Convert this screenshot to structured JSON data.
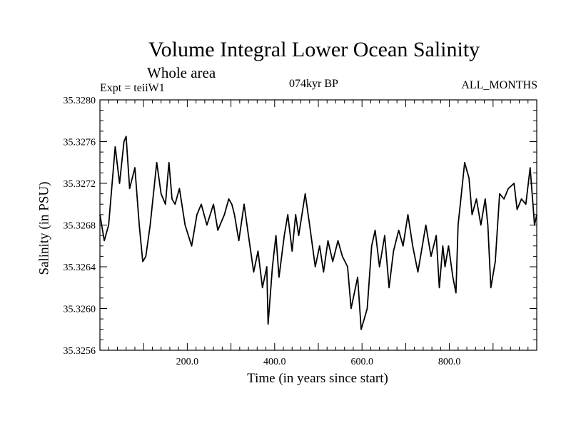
{
  "title": "Volume Integral Lower Ocean Salinity",
  "subtitle": "Whole area",
  "experiment": "Expt = teiiW1",
  "period": "074kyr BP",
  "months": "ALL_MONTHS",
  "chart_data": {
    "type": "line",
    "title": "Volume Integral Lower Ocean Salinity",
    "subtitle": "Whole area",
    "xlabel": "Time (in years since start)",
    "ylabel": "Salinity (in PSU)",
    "xlim": [
      0,
      1000
    ],
    "ylim": [
      35.3256,
      35.328
    ],
    "xticks": [
      200,
      400,
      600,
      800
    ],
    "xtick_labels": [
      "200.0",
      "400.0",
      "600.0",
      "800.0"
    ],
    "yticks": [
      35.3256,
      35.326,
      35.3264,
      35.3268,
      35.3272,
      35.3276,
      35.328
    ],
    "ytick_labels": [
      "35.3256",
      "35.3260",
      "35.3264",
      "35.3268",
      "35.3272",
      "35.3276",
      "35.3280"
    ],
    "grid": false,
    "line_color": "#000000",
    "series": [
      {
        "x": [
          0,
          10,
          20,
          35,
          45,
          55,
          60,
          68,
          80,
          90,
          98,
          105,
          115,
          130,
          140,
          150,
          158,
          165,
          172,
          182,
          195,
          210,
          222,
          232,
          245,
          260,
          270,
          285,
          295,
          302,
          308,
          318,
          330,
          340,
          352,
          362,
          372,
          382,
          385,
          395,
          403,
          410,
          422,
          430,
          440,
          448,
          455,
          470,
          480,
          493,
          503,
          512,
          522,
          533,
          545,
          555,
          567,
          575,
          590,
          598,
          605,
          612,
          622,
          630,
          640,
          652,
          662,
          672,
          684,
          694,
          705,
          716,
          728,
          738,
          746,
          758,
          770,
          777,
          785,
          790,
          798,
          808,
          815,
          820,
          825,
          835,
          845,
          852,
          862,
          872,
          882,
          888,
          895,
          905,
          915,
          925,
          935,
          948,
          955,
          965,
          975,
          985,
          995,
          1000
        ],
        "values": [
          35.3269,
          35.32665,
          35.3268,
          35.32755,
          35.3272,
          35.3276,
          35.32765,
          35.32715,
          35.32735,
          35.3268,
          35.32645,
          35.3265,
          35.3268,
          35.3274,
          35.3271,
          35.327,
          35.3274,
          35.32705,
          35.327,
          35.32715,
          35.3268,
          35.3266,
          35.3269,
          35.327,
          35.3268,
          35.327,
          35.32675,
          35.3269,
          35.32705,
          35.327,
          35.3269,
          35.32665,
          35.327,
          35.3267,
          35.32635,
          35.32655,
          35.3262,
          35.3264,
          35.32585,
          35.3264,
          35.3267,
          35.3263,
          35.3267,
          35.3269,
          35.32655,
          35.3269,
          35.3267,
          35.3271,
          35.3268,
          35.3264,
          35.3266,
          35.32635,
          35.32665,
          35.32645,
          35.32665,
          35.3265,
          35.3264,
          35.326,
          35.3263,
          35.3258,
          35.3259,
          35.326,
          35.3266,
          35.32675,
          35.3264,
          35.3267,
          35.3262,
          35.32655,
          35.32675,
          35.3266,
          35.3269,
          35.3266,
          35.32635,
          35.3266,
          35.3268,
          35.3265,
          35.3267,
          35.3262,
          35.3266,
          35.3264,
          35.3266,
          35.3263,
          35.32615,
          35.3268,
          35.327,
          35.3274,
          35.32725,
          35.3269,
          35.32705,
          35.3268,
          35.32705,
          35.3268,
          35.3262,
          35.32645,
          35.3271,
          35.32705,
          35.32715,
          35.3272,
          35.32695,
          35.32705,
          35.327,
          35.32735,
          35.3268,
          35.3269
        ]
      }
    ]
  }
}
